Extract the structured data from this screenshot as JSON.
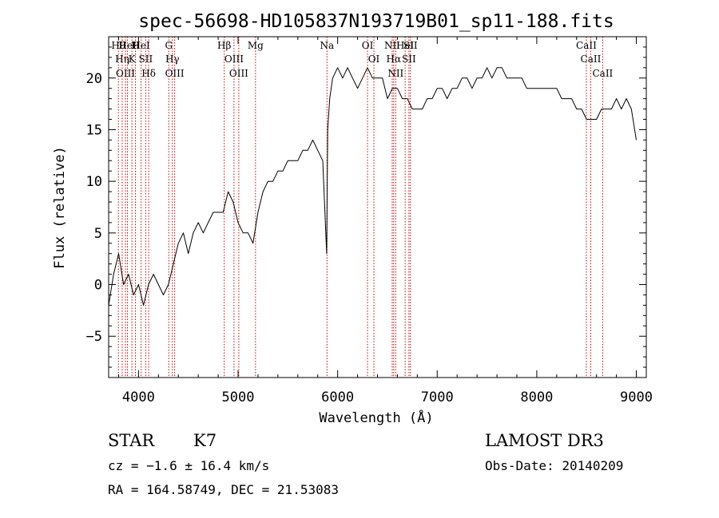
{
  "chart_data": {
    "type": "line",
    "title": "spec-56698-HD105837N193719B01_sp11-188.fits",
    "xlabel": "Wavelength (Å)",
    "ylabel": "Flux (relative)",
    "xlim": [
      3700,
      9100
    ],
    "ylim": [
      -9,
      24
    ],
    "xticks": [
      4000,
      5000,
      6000,
      7000,
      8000,
      9000
    ],
    "yticks": [
      -5,
      0,
      5,
      10,
      15,
      20
    ],
    "series": [
      {
        "color": "#000000",
        "x": [
          3700,
          3750,
          3800,
          3850,
          3900,
          3950,
          4000,
          4050,
          4100,
          4150,
          4200,
          4250,
          4300,
          4350,
          4400,
          4450,
          4500,
          4550,
          4600,
          4650,
          4700,
          4750,
          4800,
          4850,
          4900,
          4950,
          5000,
          5050,
          5100,
          5150,
          5200,
          5250,
          5300,
          5350,
          5400,
          5450,
          5500,
          5550,
          5600,
          5650,
          5700,
          5750,
          5800,
          5850,
          5890,
          5900,
          5920,
          5950,
          6000,
          6050,
          6100,
          6150,
          6200,
          6250,
          6300,
          6350,
          6400,
          6450,
          6500,
          6550,
          6600,
          6650,
          6700,
          6750,
          6800,
          6850,
          6900,
          6950,
          7000,
          7050,
          7100,
          7150,
          7200,
          7250,
          7300,
          7350,
          7400,
          7450,
          7500,
          7550,
          7600,
          7650,
          7700,
          7750,
          7800,
          7850,
          7900,
          7950,
          8000,
          8050,
          8100,
          8150,
          8200,
          8250,
          8300,
          8350,
          8400,
          8450,
          8500,
          8550,
          8600,
          8650,
          8700,
          8750,
          8800,
          8850,
          8900,
          8950,
          9000
        ],
        "values": [
          -2,
          1,
          3,
          0,
          1,
          -1,
          0,
          -2,
          0,
          1,
          0,
          -1,
          0,
          2,
          4,
          5,
          3,
          5,
          6,
          5,
          6,
          7,
          7,
          7,
          9,
          8,
          6,
          5,
          5,
          4,
          7,
          9,
          10,
          10,
          11,
          11,
          12,
          12,
          12,
          13,
          13,
          14,
          13,
          12,
          3,
          15,
          18,
          20,
          21,
          20,
          21,
          20,
          19,
          20,
          21,
          20,
          20,
          20,
          18,
          19,
          19,
          18,
          18,
          17,
          17,
          17,
          18,
          18,
          19,
          19,
          18,
          19,
          19,
          20,
          20,
          19,
          20,
          20,
          21,
          20,
          21,
          21,
          20,
          20,
          20,
          20,
          19,
          19,
          19,
          19,
          19,
          19,
          19,
          18,
          18,
          18,
          17,
          17,
          16,
          16,
          16,
          17,
          17,
          17,
          18,
          17,
          18,
          17,
          14
        ]
      }
    ],
    "lines": [
      {
        "x": 3798,
        "label": "Hθ"
      },
      {
        "x": 3836,
        "label": "Hη"
      },
      {
        "x": 3869,
        "label": "OIII"
      },
      {
        "x": 3889,
        "label": "HeI"
      },
      {
        "x": 3934,
        "label": "K"
      },
      {
        "x": 3969,
        "label": "H"
      },
      {
        "x": 4026,
        "label": "HeI"
      },
      {
        "x": 4072,
        "label": "SII"
      },
      {
        "x": 4102,
        "label": "Hδ"
      },
      {
        "x": 4304,
        "label": "G"
      },
      {
        "x": 4340,
        "label": "Hγ"
      },
      {
        "x": 4363,
        "label": "OIII"
      },
      {
        "x": 4861,
        "label": "Hβ"
      },
      {
        "x": 4959,
        "label": "OIII"
      },
      {
        "x": 5007,
        "label": "OIII"
      },
      {
        "x": 5175,
        "label": "Mg"
      },
      {
        "x": 5893,
        "label": "Na"
      },
      {
        "x": 6300,
        "label": "OI"
      },
      {
        "x": 6364,
        "label": "OI"
      },
      {
        "x": 6548,
        "label": "NII"
      },
      {
        "x": 6563,
        "label": "Hα"
      },
      {
        "x": 6583,
        "label": "NII"
      },
      {
        "x": 6678,
        "label": "HeI"
      },
      {
        "x": 6716,
        "label": "SII"
      },
      {
        "x": 6731,
        "label": "SII"
      },
      {
        "x": 8498,
        "label": "CaII"
      },
      {
        "x": 8542,
        "label": "CaII"
      },
      {
        "x": 8662,
        "label": "CaII"
      }
    ],
    "line_color": "#cc0000"
  },
  "info": {
    "object_class": "STAR",
    "subclass": "K7",
    "cz": "cz = −1.6 ± 16.4 km/s",
    "radec": "RA = 164.58749, DEC =  21.53083",
    "survey": "LAMOST DR3",
    "obs_date": "Obs-Date: 20140209"
  }
}
